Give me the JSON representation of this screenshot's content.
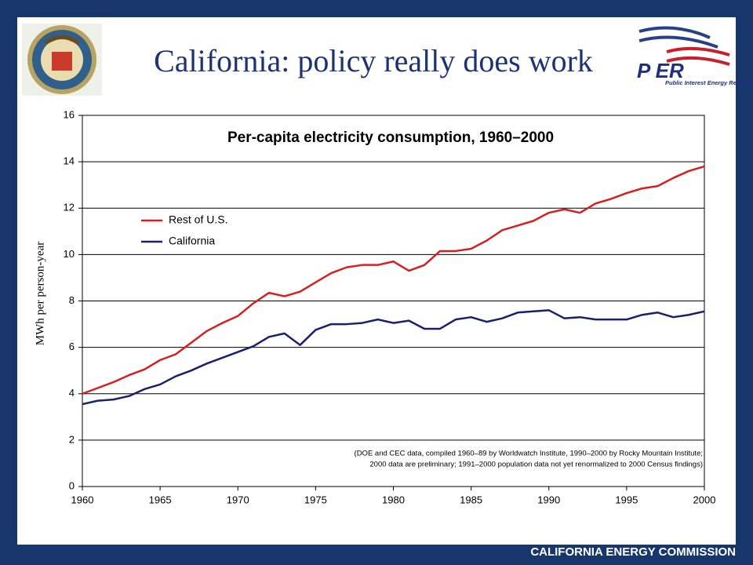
{
  "slide": {
    "title": "California: policy really does work",
    "footer": "CALIFORNIA ENERGY COMMISSION",
    "logo": {
      "letters": "P ER",
      "tagline": "Public Interest Energy Research"
    }
  },
  "chart_data": {
    "type": "line",
    "title": "Per-capita electricity consumption, 1960–2000",
    "ylabel": "MWh per person-year",
    "x": [
      1960,
      1961,
      1962,
      1963,
      1964,
      1965,
      1966,
      1967,
      1968,
      1969,
      1970,
      1971,
      1972,
      1973,
      1974,
      1975,
      1976,
      1977,
      1978,
      1979,
      1980,
      1981,
      1982,
      1983,
      1984,
      1985,
      1986,
      1987,
      1988,
      1989,
      1990,
      1991,
      1992,
      1993,
      1994,
      1995,
      1996,
      1997,
      1998,
      1999,
      2000
    ],
    "series": [
      {
        "name": "Rest of U.S.",
        "color": "#d42020",
        "values": [
          4.0,
          4.25,
          4.5,
          4.8,
          5.05,
          5.45,
          5.7,
          6.2,
          6.7,
          7.05,
          7.35,
          7.9,
          8.35,
          8.2,
          8.4,
          8.8,
          9.2,
          9.45,
          9.55,
          9.55,
          9.7,
          9.3,
          9.55,
          10.15,
          10.15,
          10.25,
          10.6,
          11.05,
          11.25,
          11.45,
          11.8,
          11.95,
          11.8,
          12.2,
          12.4,
          12.65,
          12.85,
          12.95,
          13.3,
          13.6,
          13.8
        ]
      },
      {
        "name": "California",
        "color": "#1a1f6e",
        "values": [
          3.55,
          3.7,
          3.75,
          3.9,
          4.2,
          4.4,
          4.75,
          5.0,
          5.3,
          5.55,
          5.8,
          6.05,
          6.45,
          6.6,
          6.1,
          6.75,
          7.0,
          7.0,
          7.05,
          7.2,
          7.05,
          7.15,
          6.8,
          6.8,
          7.2,
          7.3,
          7.1,
          7.25,
          7.5,
          7.55,
          7.6,
          7.25,
          7.3,
          7.2,
          7.2,
          7.2,
          7.4,
          7.5,
          7.3,
          7.4,
          7.55
        ]
      }
    ],
    "xlim": [
      1960,
      2000
    ],
    "xticks": [
      1960,
      1965,
      1970,
      1975,
      1980,
      1985,
      1990,
      1995,
      2000
    ],
    "ylim": [
      0,
      16
    ],
    "yticks": [
      0,
      2,
      4,
      6,
      8,
      10,
      12,
      14,
      16
    ],
    "grid": true,
    "legend": "upper left",
    "annotations": [
      "(DOE and CEC data, compiled 1960–89 by Worldwatch Institute, 1990–2000 by Rocky Mountain Institute;",
      "2000 data are preliminary; 1991–2000 population data not yet renormalized to 2000 Census findings)"
    ]
  }
}
